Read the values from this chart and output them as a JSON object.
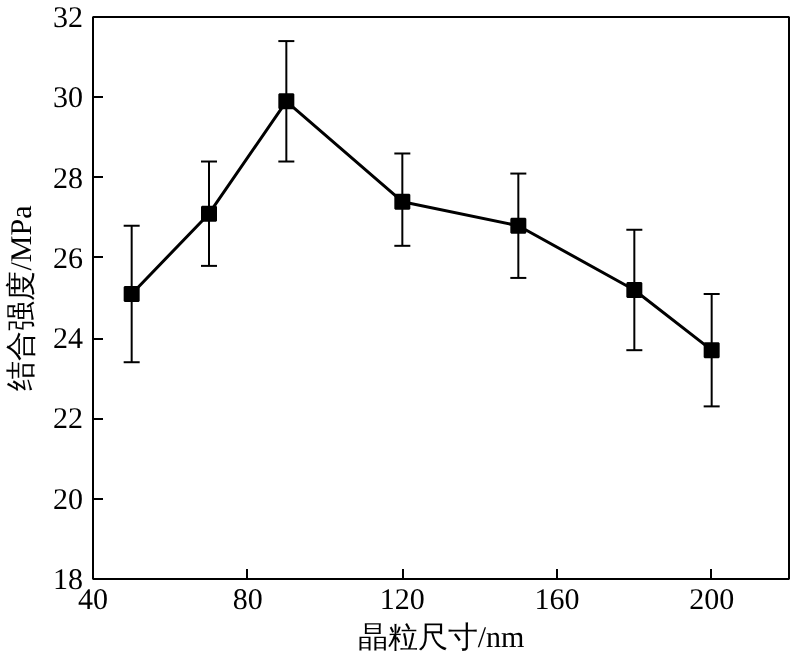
{
  "chart_data": {
    "type": "line",
    "xlabel": "晶粒尺寸/nm",
    "ylabel": "结合强度/MPa",
    "x": [
      50,
      70,
      90,
      120,
      150,
      180,
      200
    ],
    "series": [
      {
        "color": "#000000",
        "values": [
          25.1,
          27.1,
          29.9,
          27.4,
          26.8,
          25.2,
          23.7
        ],
        "errors": [
          [
            23.4,
            26.8
          ],
          [
            25.8,
            28.4
          ],
          [
            28.4,
            31.4
          ],
          [
            26.3,
            28.6
          ],
          [
            25.5,
            28.1
          ],
          [
            23.7,
            26.7
          ],
          [
            22.3,
            25.1
          ]
        ]
      }
    ],
    "xlim": [
      40,
      220
    ],
    "xticks": [
      40,
      80,
      120,
      160,
      200
    ],
    "ylim": [
      18,
      32
    ],
    "yticks": [
      18,
      20,
      22,
      24,
      26,
      28,
      30,
      32
    ],
    "marker": "square",
    "line_style": "solid",
    "grid": false
  }
}
